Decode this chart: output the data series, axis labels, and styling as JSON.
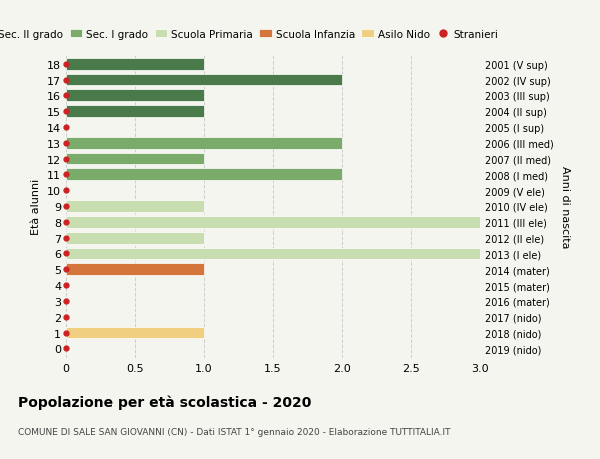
{
  "ages": [
    18,
    17,
    16,
    15,
    14,
    13,
    12,
    11,
    10,
    9,
    8,
    7,
    6,
    5,
    4,
    3,
    2,
    1,
    0
  ],
  "years": [
    "2001 (V sup)",
    "2002 (IV sup)",
    "2003 (III sup)",
    "2004 (II sup)",
    "2005 (I sup)",
    "2006 (III med)",
    "2007 (II med)",
    "2008 (I med)",
    "2009 (V ele)",
    "2010 (IV ele)",
    "2011 (III ele)",
    "2012 (II ele)",
    "2013 (I ele)",
    "2014 (mater)",
    "2015 (mater)",
    "2016 (mater)",
    "2017 (nido)",
    "2018 (nido)",
    "2019 (nido)"
  ],
  "bars": [
    {
      "age": 18,
      "value": 1.0,
      "color": "#4a7a4a",
      "category": "Sec. II grado"
    },
    {
      "age": 17,
      "value": 2.0,
      "color": "#4a7a4a",
      "category": "Sec. II grado"
    },
    {
      "age": 16,
      "value": 1.0,
      "color": "#4a7a4a",
      "category": "Sec. II grado"
    },
    {
      "age": 15,
      "value": 1.0,
      "color": "#4a7a4a",
      "category": "Sec. II grado"
    },
    {
      "age": 13,
      "value": 2.0,
      "color": "#7aab6a",
      "category": "Sec. I grado"
    },
    {
      "age": 12,
      "value": 1.0,
      "color": "#7aab6a",
      "category": "Sec. I grado"
    },
    {
      "age": 11,
      "value": 2.0,
      "color": "#7aab6a",
      "category": "Sec. I grado"
    },
    {
      "age": 9,
      "value": 1.0,
      "color": "#c8ddb0",
      "category": "Scuola Primaria"
    },
    {
      "age": 8,
      "value": 3.0,
      "color": "#c8ddb0",
      "category": "Scuola Primaria"
    },
    {
      "age": 7,
      "value": 1.0,
      "color": "#c8ddb0",
      "category": "Scuola Primaria"
    },
    {
      "age": 6,
      "value": 3.0,
      "color": "#c8ddb0",
      "category": "Scuola Primaria"
    },
    {
      "age": 5,
      "value": 1.0,
      "color": "#d4763b",
      "category": "Scuola Infanzia"
    },
    {
      "age": 1,
      "value": 1.0,
      "color": "#f0d080",
      "category": "Asilo Nido"
    }
  ],
  "stranieri_ages": [
    18,
    17,
    16,
    15,
    14,
    13,
    12,
    11,
    10,
    9,
    8,
    7,
    6,
    5,
    4,
    3,
    2,
    1,
    0
  ],
  "colors": {
    "Sec. II grado": "#4a7a4a",
    "Sec. I grado": "#7aab6a",
    "Scuola Primaria": "#c8ddb0",
    "Scuola Infanzia": "#d4763b",
    "Asilo Nido": "#f0d080",
    "Stranieri": "#cc2222"
  },
  "legend_labels": [
    "Sec. II grado",
    "Sec. I grado",
    "Scuola Primaria",
    "Scuola Infanzia",
    "Asilo Nido",
    "Stranieri"
  ],
  "xlim": [
    0,
    3.0
  ],
  "xticks": [
    0,
    0.5,
    1.0,
    1.5,
    2.0,
    2.5,
    3.0
  ],
  "xtick_labels": [
    "0",
    "0.5",
    "1.0",
    "1.5",
    "2.0",
    "2.5",
    "3.0"
  ],
  "ylabel_left": "Età alunni",
  "ylabel_right": "Anni di nascita",
  "title": "Popolazione per età scolastica - 2020",
  "subtitle": "COMUNE DI SALE SAN GIOVANNI (CN) - Dati ISTAT 1° gennaio 2020 - Elaborazione TUTTITALIA.IT",
  "background_color": "#f5f5f0",
  "bar_height": 0.75,
  "grid_color": "#cccccc"
}
